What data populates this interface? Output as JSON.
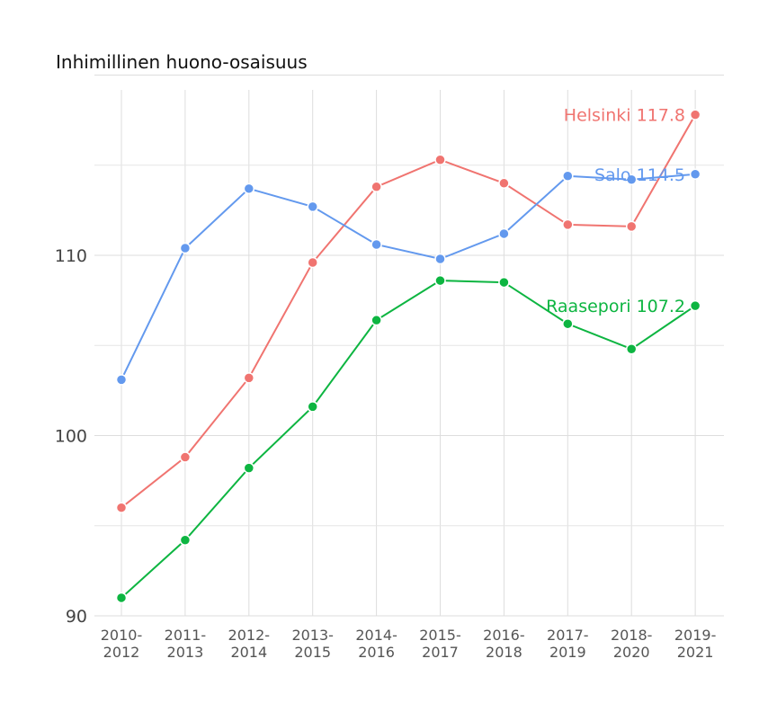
{
  "chart_data": {
    "type": "line",
    "title": "Inhimillinen huono-osaisuus",
    "xlabel": "",
    "ylabel": "",
    "categories": [
      [
        "2010-",
        "2012"
      ],
      [
        "2011-",
        "2013"
      ],
      [
        "2012-",
        "2014"
      ],
      [
        "2013-",
        "2015"
      ],
      [
        "2014-",
        "2016"
      ],
      [
        "2015-",
        "2017"
      ],
      [
        "2016-",
        "2018"
      ],
      [
        "2017-",
        "2019"
      ],
      [
        "2018-",
        "2020"
      ],
      [
        "2019-",
        "2021"
      ]
    ],
    "ylim": [
      90,
      120
    ],
    "yticks": [
      90,
      100,
      110
    ],
    "grid": true,
    "series": [
      {
        "name": "Helsinki",
        "color": "#f07470",
        "end_label": "Helsinki 117.8",
        "values": [
          96.0,
          98.8,
          103.2,
          109.6,
          113.8,
          115.3,
          114.0,
          111.7,
          111.6,
          117.8
        ]
      },
      {
        "name": "Salo",
        "color": "#6399ee",
        "end_label": "Salo 114.5",
        "values": [
          103.1,
          110.4,
          113.7,
          112.7,
          110.6,
          109.8,
          111.2,
          114.4,
          114.2,
          114.5
        ]
      },
      {
        "name": "Raasepori",
        "color": "#0db541",
        "end_label": "Raasepori 107.2",
        "values": [
          91.0,
          94.2,
          98.2,
          101.6,
          106.4,
          108.6,
          108.5,
          106.2,
          104.8,
          107.2
        ]
      }
    ]
  }
}
